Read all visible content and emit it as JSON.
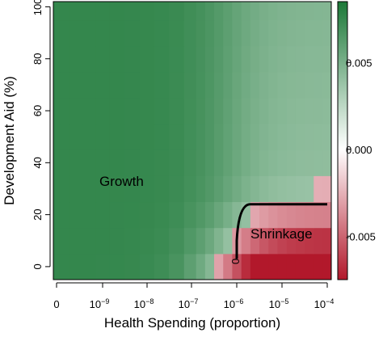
{
  "chart_data": {
    "type": "heatmap",
    "title": "",
    "xlabel": "Health Spending (proportion)",
    "ylabel": "Development Aid (%)",
    "x_ticks": [
      {
        "base": "0",
        "exp": ""
      },
      {
        "base": "10",
        "exp": "−9"
      },
      {
        "base": "10",
        "exp": "−8"
      },
      {
        "base": "10",
        "exp": "−7"
      },
      {
        "base": "10",
        "exp": "−6"
      },
      {
        "base": "10",
        "exp": "−5"
      },
      {
        "base": "10",
        "exp": "−4"
      }
    ],
    "y_ticks": [
      "0",
      "20",
      "40",
      "60",
      "80",
      "100"
    ],
    "ylim": [
      -5,
      102
    ],
    "x_cells": 26,
    "y_values": [
      0,
      10,
      20,
      30,
      40,
      50,
      60,
      70,
      80,
      90,
      100
    ],
    "x_cell_values": [
      0,
      1e-10,
      2.1e-10,
      4.6e-10,
      1e-09,
      2.1e-09,
      4.6e-09,
      1e-08,
      2.1e-08,
      4.6e-08,
      1e-07,
      1.6e-07,
      2.5e-07,
      4e-07,
      6.3e-07,
      1e-06,
      1.6e-06,
      2.5e-06,
      4e-06,
      6.3e-06,
      1e-05,
      1.6e-05,
      2.5e-05,
      4e-05,
      6.3e-05,
      0.0001
    ],
    "colorbar": {
      "ticks": [
        "0.005",
        "0.000",
        "-0.005"
      ],
      "tick_values": [
        0.005,
        0.0,
        -0.005
      ],
      "range": [
        -0.0075,
        0.0085
      ],
      "colors": [
        "#b2182b",
        "#ffffff",
        "#1b7837"
      ]
    },
    "annotations": [
      {
        "text": "Growth",
        "x": 1e-09,
        "y": 33
      },
      {
        "text": "Shrinkage",
        "x": 1.5e-05,
        "y": 14
      },
      {
        "text": "0",
        "x": 1e-06,
        "y": 3
      }
    ],
    "contour_zero": {
      "label": "0",
      "points": [
        [
          1e-06,
          3
        ],
        [
          1e-06,
          10
        ],
        [
          1.1e-06,
          20
        ],
        [
          2e-06,
          24
        ],
        [
          0.0001,
          24
        ]
      ]
    }
  }
}
